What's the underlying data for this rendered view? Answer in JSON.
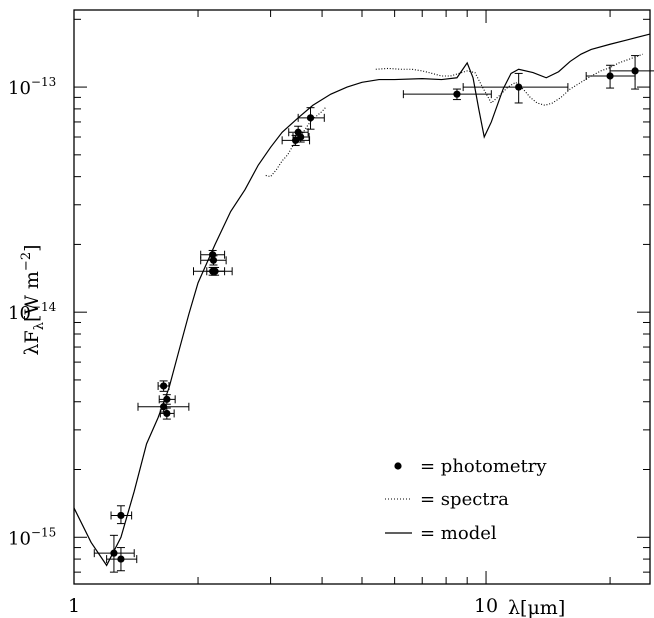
{
  "chart_data": {
    "type": "scatter",
    "title": "",
    "xlabel": "λ[μm]",
    "ylabel": "λF_λ[W m^-2]",
    "x_scale": "log",
    "y_scale": "log",
    "xlim": [
      1,
      25
    ],
    "ylim": [
      6.2e-16,
      2.2e-13
    ],
    "grid": false,
    "legend_position": "bottom-right",
    "x_ticks": [
      {
        "value": 1,
        "label": "1"
      },
      {
        "value": 10,
        "label": "10"
      }
    ],
    "y_ticks": [
      {
        "value": 1e-15,
        "base": "10",
        "exp": "−15"
      },
      {
        "value": 1e-14,
        "base": "10",
        "exp": "−14"
      },
      {
        "value": 1e-13,
        "base": "10",
        "exp": "−13"
      }
    ],
    "legend": [
      {
        "key": "photometry",
        "label": "= photometry"
      },
      {
        "key": "spectra",
        "label": "= spectra"
      },
      {
        "key": "model",
        "label": "= model"
      }
    ],
    "series": [
      {
        "name": "photometry",
        "kind": "points_with_errorbars",
        "points": [
          {
            "x": 1.25,
            "y": 8.5e-16,
            "xerr": [
              0.13,
              0.15
            ],
            "yerr": [
              1.5e-16,
              1.7e-16
            ]
          },
          {
            "x": 1.3,
            "y": 8e-16,
            "xerr": [
              0.1,
              0.12
            ],
            "yerr": [
              9e-17,
              1e-16
            ]
          },
          {
            "x": 1.3,
            "y": 1.25e-15,
            "xerr": [
              0.07,
              0.08
            ],
            "yerr": [
              1e-16,
              1.3e-16
            ]
          },
          {
            "x": 1.65,
            "y": 4.7e-15,
            "xerr": [
              0.05,
              0.05
            ],
            "yerr": [
              2.5e-16,
              2.5e-16
            ]
          },
          {
            "x": 1.65,
            "y": 3.8e-15,
            "xerr": [
              0.22,
              0.25
            ],
            "yerr": [
              2e-16,
              2e-16
            ]
          },
          {
            "x": 1.68,
            "y": 4.1e-15,
            "xerr": [
              0.07,
              0.08
            ],
            "yerr": [
              2e-16,
              2e-16
            ]
          },
          {
            "x": 1.68,
            "y": 3.55e-15,
            "xerr": [
              0.06,
              0.07
            ],
            "yerr": [
              2e-16,
              2e-16
            ]
          },
          {
            "x": 2.17,
            "y": 1.8e-14,
            "xerr": [
              0.14,
              0.15
            ],
            "yerr": [
              8e-16,
              8e-16
            ]
          },
          {
            "x": 2.18,
            "y": 1.7e-14,
            "xerr": [
              0.15,
              0.16
            ],
            "yerr": [
              8e-16,
              8e-16
            ]
          },
          {
            "x": 2.17,
            "y": 1.52e-14,
            "xerr": [
              0.22,
              0.25
            ],
            "yerr": [
              6e-16,
              6e-16
            ]
          },
          {
            "x": 2.2,
            "y": 1.52e-14,
            "xerr": [
              0.1,
              0.12
            ],
            "yerr": [
              6e-16,
              6e-16
            ]
          },
          {
            "x": 3.5,
            "y": 6.3e-14,
            "xerr": [
              0.18,
              0.2
            ],
            "yerr": [
              4e-15,
              4e-15
            ]
          },
          {
            "x": 3.45,
            "y": 5.8e-14,
            "xerr": [
              0.25,
              0.28
            ],
            "yerr": [
              3e-15,
              3e-15
            ]
          },
          {
            "x": 3.55,
            "y": 6e-14,
            "xerr": [
              0.15,
              0.17
            ],
            "yerr": [
              3e-15,
              3e-15
            ]
          },
          {
            "x": 3.75,
            "y": 7.3e-14,
            "xerr": [
              0.25,
              0.3
            ],
            "yerr": [
              8e-15,
              8e-15
            ]
          },
          {
            "x": 8.5,
            "y": 9.3e-14,
            "xerr": [
              2.2,
              1.8
            ],
            "yerr": [
              5e-15,
              5e-15
            ]
          },
          {
            "x": 12.0,
            "y": 1e-13,
            "xerr": [
              3.2,
              3.8
            ],
            "yerr": [
              1.5e-14,
              1.5e-14
            ]
          },
          {
            "x": 20.0,
            "y": 1.12e-13,
            "xerr": [
              2.5,
              3.0
            ],
            "yerr": [
              1.3e-14,
              1.3e-14
            ]
          },
          {
            "x": 23.0,
            "y": 1.18e-13,
            "xerr": [
              3.0,
              3.5
            ],
            "yerr": [
              2e-14,
              2e-14
            ]
          }
        ]
      },
      {
        "name": "spectra",
        "kind": "dotted_line",
        "segments": [
          [
            [
              2.92,
              4.05e-14
            ],
            [
              3.0,
              4e-14
            ],
            [
              3.1,
              4.3e-14
            ],
            [
              3.2,
              4.7e-14
            ],
            [
              3.3,
              5e-14
            ],
            [
              3.4,
              5.5e-14
            ],
            [
              3.5,
              5.9e-14
            ],
            [
              3.6,
              6.3e-14
            ],
            [
              3.7,
              6.8e-14
            ],
            [
              3.8,
              7.2e-14
            ],
            [
              3.9,
              7.5e-14
            ],
            [
              4.0,
              7.8e-14
            ],
            [
              4.1,
              8.2e-14
            ]
          ],
          [
            [
              5.4,
              1.2e-13
            ],
            [
              5.8,
              1.21e-13
            ],
            [
              6.2,
              1.2e-13
            ],
            [
              6.6,
              1.2e-13
            ],
            [
              7.0,
              1.18e-13
            ],
            [
              7.4,
              1.15e-13
            ],
            [
              7.8,
              1.12e-13
            ],
            [
              8.2,
              1.12e-13
            ],
            [
              8.6,
              1.15e-13
            ],
            [
              9.0,
              1.18e-13
            ],
            [
              9.4,
              1.16e-13
            ],
            [
              9.8,
              1e-13
            ],
            [
              10.3,
              8.5e-14
            ],
            [
              10.8,
              9.2e-14
            ],
            [
              11.3,
              1e-13
            ],
            [
              11.8,
              1.05e-13
            ],
            [
              12.3,
              9.8e-14
            ],
            [
              12.8,
              9e-14
            ],
            [
              13.3,
              8.5e-14
            ],
            [
              13.9,
              8.3e-14
            ],
            [
              14.5,
              8.5e-14
            ],
            [
              15.2,
              9e-14
            ],
            [
              16.0,
              9.8e-14
            ],
            [
              17.0,
              1.05e-13
            ],
            [
              18.0,
              1.12e-13
            ],
            [
              19.0,
              1.18e-13
            ],
            [
              20.0,
              1.22e-13
            ],
            [
              21.0,
              1.28e-13
            ],
            [
              22.0,
              1.32e-13
            ],
            [
              23.0,
              1.36e-13
            ],
            [
              24.0,
              1.4e-13
            ]
          ]
        ]
      },
      {
        "name": "model",
        "kind": "solid_line",
        "points": [
          [
            1.0,
            1.35e-15
          ],
          [
            1.1,
            9.5e-16
          ],
          [
            1.2,
            7.5e-16
          ],
          [
            1.3,
            1e-15
          ],
          [
            1.4,
            1.6e-15
          ],
          [
            1.5,
            2.6e-15
          ],
          [
            1.6,
            3.4e-15
          ],
          [
            1.7,
            4.6e-15
          ],
          [
            1.8,
            6.8e-15
          ],
          [
            1.9,
            9.8e-15
          ],
          [
            2.0,
            1.35e-14
          ],
          [
            2.2,
            2e-14
          ],
          [
            2.4,
            2.8e-14
          ],
          [
            2.6,
            3.5e-14
          ],
          [
            2.8,
            4.5e-14
          ],
          [
            3.0,
            5.4e-14
          ],
          [
            3.2,
            6.3e-14
          ],
          [
            3.5,
            7.3e-14
          ],
          [
            3.8,
            8.3e-14
          ],
          [
            4.2,
            9.3e-14
          ],
          [
            4.6,
            1e-13
          ],
          [
            5.0,
            1.05e-13
          ],
          [
            5.5,
            1.08e-13
          ],
          [
            6.0,
            1.08e-13
          ],
          [
            7.0,
            1.09e-13
          ],
          [
            7.8,
            1.08e-13
          ],
          [
            8.5,
            1.1e-13
          ],
          [
            9.0,
            1.28e-13
          ],
          [
            9.3,
            1.1e-13
          ],
          [
            9.6,
            8e-14
          ],
          [
            9.9,
            6e-14
          ],
          [
            10.3,
            7e-14
          ],
          [
            11.0,
            9.8e-14
          ],
          [
            11.5,
            1.15e-13
          ],
          [
            12.0,
            1.2e-13
          ],
          [
            13.0,
            1.16e-13
          ],
          [
            14.0,
            1.1e-13
          ],
          [
            15.0,
            1.17e-13
          ],
          [
            16.0,
            1.3e-13
          ],
          [
            17.0,
            1.4e-13
          ],
          [
            18.0,
            1.47e-13
          ],
          [
            20.0,
            1.55e-13
          ],
          [
            22.0,
            1.62e-13
          ],
          [
            25.0,
            1.72e-13
          ]
        ]
      }
    ]
  }
}
